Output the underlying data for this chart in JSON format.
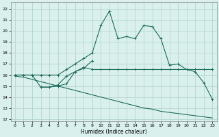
{
  "xlabel": "Humidex (Indice chaleur)",
  "xlim": [
    -0.5,
    23.5
  ],
  "ylim": [
    11.8,
    22.6
  ],
  "x_ticks": [
    0,
    1,
    2,
    3,
    4,
    5,
    6,
    7,
    8,
    9,
    10,
    11,
    12,
    13,
    14,
    15,
    16,
    17,
    18,
    19,
    20,
    21,
    22,
    23
  ],
  "y_ticks": [
    12,
    13,
    14,
    15,
    16,
    17,
    18,
    19,
    20,
    21,
    22
  ],
  "bg_color": "#daf0ec",
  "grid_color": "#aed0ca",
  "line_color": "#1a6b5a",
  "curve1_x": [
    0,
    1,
    2,
    3,
    4,
    5,
    6,
    7,
    8,
    9,
    10,
    11,
    12,
    13,
    14,
    15,
    16,
    17,
    18,
    19,
    20,
    21,
    22,
    23
  ],
  "curve1_y": [
    16.0,
    16.0,
    16.0,
    16.0,
    16.0,
    16.0,
    16.5,
    17.0,
    17.5,
    18.0,
    20.5,
    21.8,
    19.3,
    19.5,
    19.3,
    20.5,
    20.4,
    19.3,
    16.9,
    17.0,
    16.5,
    16.3,
    15.3,
    13.8
  ],
  "curve2_x": [
    0,
    1,
    2,
    3,
    4,
    5,
    6,
    7,
    8,
    9,
    10,
    11,
    12,
    13,
    14,
    15,
    16,
    17,
    18,
    19,
    20,
    21,
    22,
    23
  ],
  "curve2_y": [
    16.0,
    16.0,
    16.0,
    14.9,
    14.9,
    15.1,
    15.9,
    16.3,
    16.7,
    16.5,
    16.5,
    16.5,
    16.5,
    16.5,
    16.5,
    16.5,
    16.5,
    16.5,
    16.5,
    16.5,
    16.5,
    16.5,
    16.5,
    16.5
  ],
  "curve3_x": [
    3,
    4,
    5,
    6,
    7,
    8,
    9
  ],
  "curve3_y": [
    14.9,
    14.9,
    15.0,
    15.2,
    16.3,
    16.6,
    17.3
  ],
  "curve4_x": [
    0,
    1,
    2,
    3,
    4,
    5,
    6,
    7,
    8,
    9,
    10,
    11,
    12,
    13,
    14,
    15,
    16,
    17,
    18,
    19,
    20,
    21,
    22,
    23
  ],
  "curve4_y": [
    15.9,
    15.8,
    15.6,
    15.4,
    15.2,
    15.0,
    14.8,
    14.6,
    14.4,
    14.2,
    14.0,
    13.8,
    13.6,
    13.4,
    13.2,
    13.0,
    12.9,
    12.7,
    12.6,
    12.5,
    12.4,
    12.3,
    12.2,
    12.1
  ]
}
